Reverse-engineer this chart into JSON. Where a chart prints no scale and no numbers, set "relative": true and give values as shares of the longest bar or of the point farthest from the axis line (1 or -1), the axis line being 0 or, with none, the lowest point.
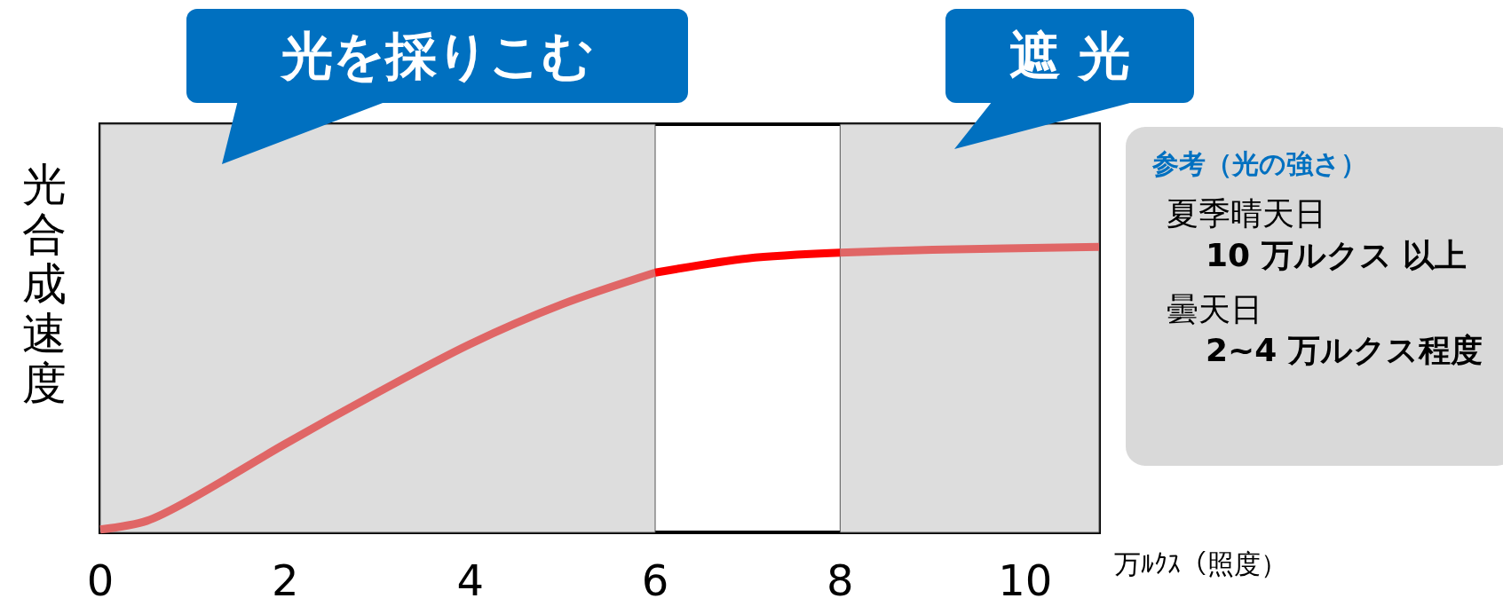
{
  "chart_data": {
    "type": "line",
    "relative": true,
    "ylabel": "光合成速度",
    "xlabel": "万ﾙｸｽ（照度）",
    "xlim": [
      0,
      10.8
    ],
    "xticks": [
      0,
      2,
      4,
      6,
      8,
      10
    ],
    "grid": false,
    "marker": "none",
    "line_style": "solid",
    "series": [
      {
        "color": "#e06666",
        "x": [
          0,
          0.5,
          1,
          2,
          3,
          4,
          5,
          6
        ],
        "values": [
          0.01,
          0.04,
          0.12,
          0.31,
          0.49,
          0.66,
          0.8,
          0.91
        ]
      },
      {
        "color": "#ff0000",
        "x": [
          6,
          7,
          8
        ],
        "values": [
          0.91,
          0.96,
          0.98
        ]
      },
      {
        "color": "#e06666",
        "x": [
          8,
          9,
          10.8
        ],
        "values": [
          0.98,
          0.99,
          1.0
        ]
      }
    ],
    "bands": [
      {
        "axis": "x",
        "from": 0,
        "to": 6,
        "label": "光を採りこむ",
        "color": "#dddddd"
      },
      {
        "axis": "x",
        "from": 8,
        "to": 10.8,
        "label": "遮 光",
        "color": "#dddddd"
      }
    ],
    "annotations": [
      "参考（光の強さ）",
      "夏季晴天日",
      "10 万ルクス 以上",
      "曇天日",
      "2~4 万ルクス程度"
    ]
  }
}
